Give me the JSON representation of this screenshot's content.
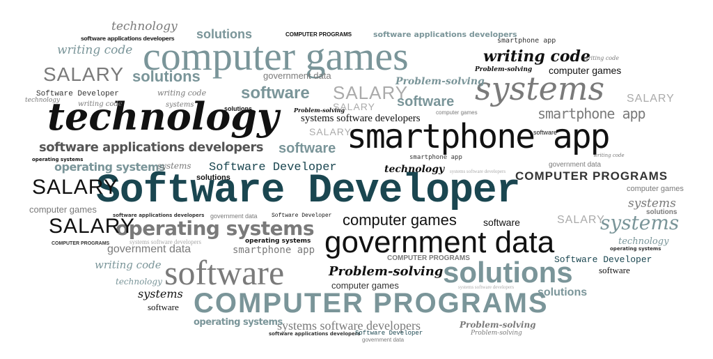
{
  "colors": {
    "black": "#111111",
    "dark_teal": "#1a4650",
    "teal_gray": "#7a9599",
    "gray": "#7a7a7a",
    "light_gray": "#aaaaaa"
  },
  "words": [
    {
      "text": "Software Developer"
    },
    {
      "text": "technology"
    },
    {
      "text": "computer games"
    },
    {
      "text": "smartphone app"
    },
    {
      "text": "systems"
    },
    {
      "text": "government data"
    },
    {
      "text": "software"
    },
    {
      "text": "solutions"
    },
    {
      "text": "COMPUTER PROGRAMS"
    },
    {
      "text": "operating systems"
    },
    {
      "text": "SALARY"
    },
    {
      "text": "writing code"
    },
    {
      "text": "Problem-solving"
    },
    {
      "text": "software applications developers"
    },
    {
      "text": "systems software developers"
    },
    {
      "text": "COMPUTER PROGRAMS"
    },
    {
      "text": "software"
    },
    {
      "text": "solutions"
    },
    {
      "text": "computer games"
    },
    {
      "text": "software"
    },
    {
      "text": "solutions"
    },
    {
      "text": "technology"
    },
    {
      "text": "writing code"
    },
    {
      "text": "writing code"
    },
    {
      "text": "SALARY"
    },
    {
      "text": "SALARY"
    },
    {
      "text": "SALARY"
    },
    {
      "text": "SALARY"
    },
    {
      "text": "SALARY"
    },
    {
      "text": "SALARY"
    },
    {
      "text": "SALARY"
    },
    {
      "text": "software applications developers"
    },
    {
      "text": "operating systems"
    },
    {
      "text": "operating systems"
    },
    {
      "text": "Software Developer"
    },
    {
      "text": "Software Developer"
    },
    {
      "text": "Software Developer"
    },
    {
      "text": "technology"
    },
    {
      "text": "technology"
    },
    {
      "text": "technology"
    },
    {
      "text": "technology"
    },
    {
      "text": "government data"
    },
    {
      "text": "government data"
    },
    {
      "text": "government data"
    },
    {
      "text": "government data"
    },
    {
      "text": "computer games"
    },
    {
      "text": "computer games"
    },
    {
      "text": "computer games"
    },
    {
      "text": "computer games"
    },
    {
      "text": "smartphone app"
    },
    {
      "text": "smartphone app"
    },
    {
      "text": "smartphone app"
    },
    {
      "text": "smartphone app"
    },
    {
      "text": "systems"
    },
    {
      "text": "systems"
    },
    {
      "text": "systems"
    },
    {
      "text": "systems"
    },
    {
      "text": "software"
    },
    {
      "text": "software"
    },
    {
      "text": "software"
    },
    {
      "text": "software"
    },
    {
      "text": "solutions"
    },
    {
      "text": "solutions"
    },
    {
      "text": "solutions"
    },
    {
      "text": "solutions"
    },
    {
      "text": "Problem-solving"
    },
    {
      "text": "Problem-solving"
    },
    {
      "text": "Problem-solving"
    },
    {
      "text": "Problem-solving"
    },
    {
      "text": "Problem-solving"
    },
    {
      "text": "COMPUTER PROGRAMS"
    },
    {
      "text": "COMPUTER PROGRAMS"
    },
    {
      "text": "COMPUTER PROGRAMS"
    },
    {
      "text": "software applications developers"
    },
    {
      "text": "software applications developers"
    },
    {
      "text": "software applications developers"
    },
    {
      "text": "systems software developers"
    },
    {
      "text": "systems software developers"
    },
    {
      "text": "systems software developers"
    },
    {
      "text": "systems software developers"
    },
    {
      "text": "operating systems"
    },
    {
      "text": "operating systems"
    },
    {
      "text": "operating systems"
    },
    {
      "text": "writing code"
    },
    {
      "text": "writing code"
    },
    {
      "text": "writing code"
    },
    {
      "text": "writing code"
    },
    {
      "text": "Software Developer"
    },
    {
      "text": "Software Developer"
    },
    {
      "text": "government data"
    },
    {
      "text": "computer games"
    },
    {
      "text": "systems"
    },
    {
      "text": "software"
    }
  ]
}
